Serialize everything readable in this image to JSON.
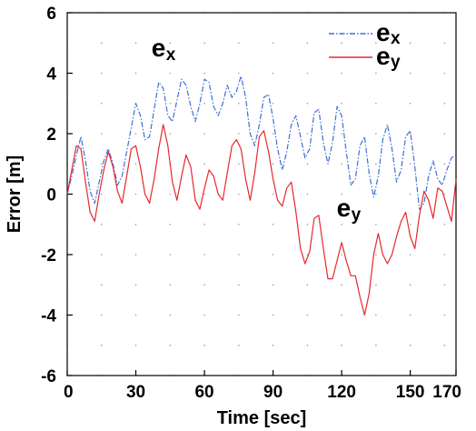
{
  "chart_data": {
    "type": "line",
    "title": "",
    "xlabel": "Time [sec]",
    "ylabel": "Error [m]",
    "xlim": [
      0,
      170
    ],
    "ylim": [
      -6,
      6
    ],
    "x_ticks": [
      0,
      30,
      60,
      90,
      120,
      150,
      170
    ],
    "y_ticks": [
      -6,
      -4,
      -2,
      0,
      2,
      4,
      6
    ],
    "grid": "dotted",
    "legend_position": "top-right",
    "series": [
      {
        "name": "ex",
        "name_main": "e",
        "name_sub": "x",
        "color": "#3f6fd6",
        "style": "dash-dot",
        "x": [
          0,
          2,
          4,
          6,
          8,
          10,
          12,
          14,
          16,
          18,
          20,
          22,
          24,
          26,
          28,
          30,
          32,
          34,
          36,
          38,
          40,
          42,
          44,
          46,
          48,
          50,
          52,
          54,
          56,
          58,
          60,
          62,
          64,
          66,
          68,
          70,
          72,
          74,
          76,
          78,
          80,
          82,
          84,
          86,
          88,
          90,
          92,
          94,
          96,
          98,
          100,
          102,
          104,
          106,
          108,
          110,
          112,
          114,
          116,
          118,
          120,
          122,
          124,
          126,
          128,
          130,
          132,
          134,
          136,
          138,
          140,
          142,
          144,
          146,
          148,
          150,
          152,
          154,
          156,
          158,
          160,
          162,
          164,
          166,
          168,
          170
        ],
        "values": [
          0,
          0.6,
          1.3,
          1.9,
          1.1,
          0.1,
          -0.3,
          0.4,
          1.1,
          1.5,
          1.0,
          0.3,
          0.6,
          1.4,
          2.2,
          3.0,
          2.6,
          1.8,
          1.9,
          2.8,
          3.7,
          3.5,
          2.6,
          2.4,
          3.1,
          3.8,
          3.6,
          2.9,
          2.4,
          3.0,
          3.8,
          3.7,
          2.9,
          2.6,
          3.0,
          3.6,
          3.2,
          3.4,
          3.9,
          3.2,
          2.0,
          1.6,
          2.3,
          3.2,
          3.3,
          2.5,
          1.5,
          0.8,
          1.4,
          2.3,
          2.6,
          1.9,
          1.2,
          1.5,
          2.7,
          2.8,
          1.7,
          1.0,
          1.7,
          2.9,
          2.6,
          1.4,
          0.3,
          0.5,
          1.6,
          1.9,
          0.7,
          -0.1,
          0.6,
          1.8,
          2.3,
          1.5,
          0.4,
          0.8,
          1.9,
          2.1,
          0.9,
          -0.5,
          -0.3,
          0.6,
          1.1,
          0.5,
          0.3,
          0.8,
          1.2,
          1.3
        ]
      },
      {
        "name": "ey",
        "name_main": "e",
        "name_sub": "y",
        "color": "#e8282a",
        "style": "solid",
        "x": [
          0,
          2,
          4,
          6,
          8,
          10,
          12,
          14,
          16,
          18,
          20,
          22,
          24,
          26,
          28,
          30,
          32,
          34,
          36,
          38,
          40,
          42,
          44,
          46,
          48,
          50,
          52,
          54,
          56,
          58,
          60,
          62,
          64,
          66,
          68,
          70,
          72,
          74,
          76,
          78,
          80,
          82,
          84,
          86,
          88,
          90,
          92,
          94,
          96,
          98,
          100,
          102,
          104,
          106,
          108,
          110,
          112,
          114,
          116,
          118,
          120,
          122,
          124,
          126,
          128,
          130,
          132,
          134,
          136,
          138,
          140,
          142,
          144,
          146,
          148,
          150,
          152,
          154,
          156,
          158,
          160,
          162,
          164,
          166,
          168,
          170
        ],
        "values": [
          0,
          0.8,
          1.6,
          1.5,
          0.4,
          -0.6,
          -0.9,
          0.0,
          0.8,
          1.4,
          0.9,
          0.1,
          -0.3,
          0.6,
          1.5,
          1.6,
          0.9,
          0.0,
          -0.3,
          0.5,
          1.5,
          2.3,
          1.6,
          0.4,
          -0.2,
          0.6,
          1.3,
          0.9,
          -0.2,
          -0.5,
          0.2,
          0.8,
          0.6,
          0.0,
          -0.2,
          0.7,
          1.6,
          1.8,
          1.5,
          0.5,
          -0.2,
          0.7,
          1.9,
          2.1,
          1.4,
          0.5,
          -0.2,
          -0.4,
          0.2,
          0.4,
          -0.6,
          -1.8,
          -2.3,
          -1.9,
          -0.8,
          -0.7,
          -1.8,
          -2.8,
          -2.8,
          -2.2,
          -1.6,
          -2.2,
          -2.7,
          -2.7,
          -3.4,
          -4.0,
          -3.3,
          -2.0,
          -1.3,
          -2.0,
          -2.3,
          -2.0,
          -1.4,
          -0.9,
          -0.6,
          -1.4,
          -1.8,
          -0.7,
          0.1,
          -0.2,
          -0.8,
          0.2,
          0.1,
          -0.4,
          -0.9,
          0.5
        ]
      }
    ],
    "annotations": [
      {
        "main": "e",
        "sub": "x",
        "x": 40,
        "y": 4.2
      },
      {
        "main": "e",
        "sub": "y",
        "x": 121,
        "y": -1.1
      }
    ]
  }
}
